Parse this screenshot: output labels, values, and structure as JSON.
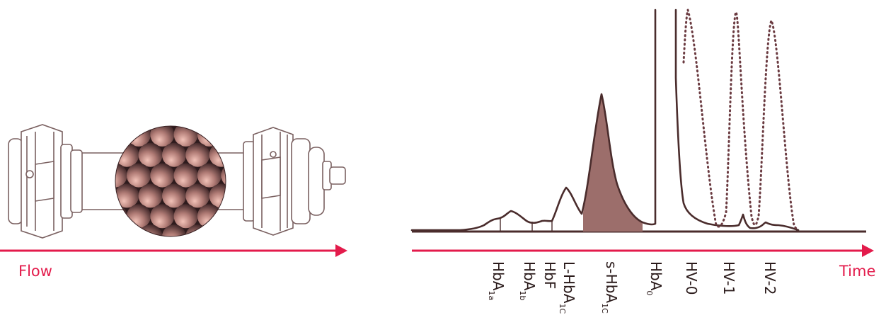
{
  "colors": {
    "accent": "#e31b4b",
    "trace": "#4a2c2c",
    "fill": "#9c6e6b",
    "bead": "#c98c86",
    "column_outline": "#7a6060"
  },
  "flow_label": "Flow",
  "time_label": "Time",
  "peaks": [
    {
      "base": "HbA",
      "sub": "1a"
    },
    {
      "base": "HbA",
      "sub": "1b"
    },
    {
      "base": "HbF",
      "sub": ""
    },
    {
      "base": "L-HbA",
      "sub": "1C"
    },
    {
      "base": "s-HbA",
      "sub": "1C"
    },
    {
      "base": "HbA",
      "sub": "0"
    },
    {
      "base": "HV-0",
      "sub": ""
    },
    {
      "base": "HV-1",
      "sub": ""
    },
    {
      "base": "HV-2",
      "sub": ""
    }
  ]
}
